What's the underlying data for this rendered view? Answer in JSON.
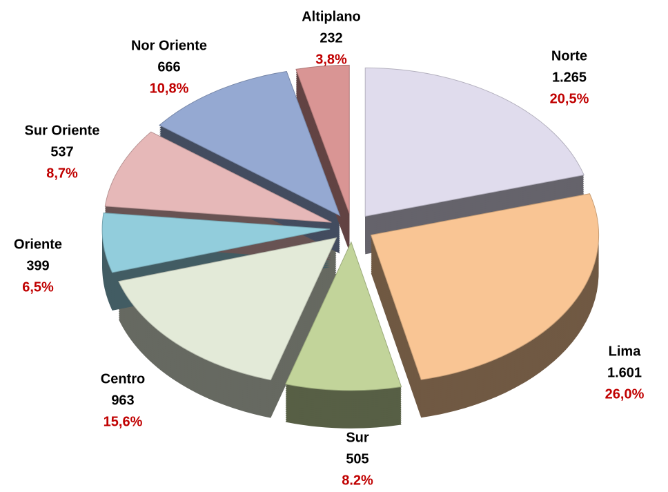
{
  "chart_data": {
    "type": "pie",
    "categories": [
      "Norte",
      "Lima",
      "Sur",
      "Centro",
      "Oriente",
      "Sur Oriente",
      "Nor Oriente",
      "Altiplano"
    ],
    "values": [
      1265,
      1601,
      505,
      963,
      399,
      537,
      666,
      232
    ],
    "value_labels": [
      "1.265",
      "1.601",
      "505",
      "963",
      "399",
      "537",
      "666",
      "232"
    ],
    "percent_labels": [
      "20,5%",
      "26,0%",
      "8.2%",
      "15,6%",
      "6,5%",
      "8,7%",
      "10,8%",
      "3,8%"
    ],
    "colors": [
      "#e0dced",
      "#f9c594",
      "#c2d49a",
      "#e3ead8",
      "#92cddc",
      "#e6b8b8",
      "#95a9d2",
      "#d99594"
    ]
  }
}
